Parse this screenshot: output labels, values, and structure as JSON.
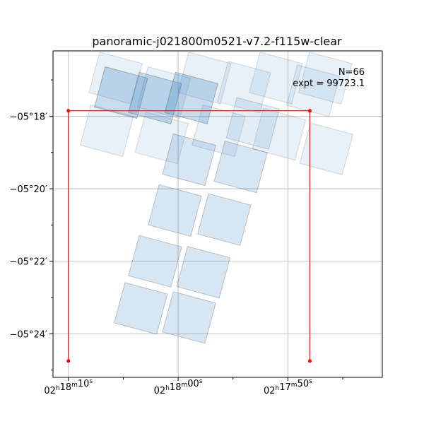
{
  "chart_data": {
    "type": "footprint",
    "title": "panoramic-j021800m0521-v7.2-f115w-clear",
    "annotation": {
      "n_label": "N=66",
      "expt_label": "expt = 99723.1"
    },
    "grid": true,
    "x_ticks": [
      {
        "ra_sec": 10,
        "label_h": "02",
        "label_m": "18",
        "label_s": "10"
      },
      {
        "ra_sec": 0,
        "label_h": "02",
        "label_m": "18",
        "label_s": "00"
      },
      {
        "ra_sec": -10,
        "label_h": "02",
        "label_m": "17",
        "label_s": "50"
      }
    ],
    "y_ticks": [
      {
        "dec_arcmin": -18,
        "label": "−05°18′"
      },
      {
        "dec_arcmin": -20,
        "label": "−05°20′"
      },
      {
        "dec_arcmin": -22,
        "label": "−05°22′"
      },
      {
        "dec_arcmin": -24,
        "label": "−05°24′"
      }
    ],
    "xlim_ra_sec": [
      11.4,
      -18.6
    ],
    "ylim_dec_arcmin": [
      -25.2,
      -16.2
    ],
    "outline": {
      "color": "#ff0000",
      "points": [
        {
          "ra_sec": 10.0,
          "dec_arcmin": -24.75
        },
        {
          "ra_sec": 10.0,
          "dec_arcmin": -17.85
        },
        {
          "ra_sec": -12.0,
          "dec_arcmin": -17.85
        },
        {
          "ra_sec": -12.0,
          "dec_arcmin": -24.75
        }
      ]
    },
    "footprints": {
      "fill_color": "#4a8cc7",
      "edge_color": "#555555",
      "tiles": [
        {
          "ra": -2.4,
          "dec": -16.95,
          "w": 4.0,
          "h": 1.15,
          "alpha": 0.12
        },
        {
          "ra": -8.9,
          "dec": -16.95,
          "w": 4.0,
          "h": 1.15,
          "alpha": 0.12
        },
        {
          "ra": 5.7,
          "dec": -16.95,
          "w": 4.0,
          "h": 1.15,
          "alpha": 0.12
        },
        {
          "ra": -13.4,
          "dec": -16.95,
          "w": 4.0,
          "h": 1.15,
          "alpha": 0.12
        },
        {
          "ra": 1.3,
          "dec": -17.35,
          "w": 4.0,
          "h": 1.15,
          "alpha": 0.12
        },
        {
          "ra": -6.0,
          "dec": -17.2,
          "w": 4.0,
          "h": 1.15,
          "alpha": 0.12
        },
        {
          "ra": -12.3,
          "dec": -17.3,
          "w": 4.0,
          "h": 1.15,
          "alpha": 0.12
        },
        {
          "ra": 6.5,
          "dec": -18.4,
          "w": 4.0,
          "h": 1.15,
          "alpha": 0.12
        },
        {
          "ra": 1.5,
          "dec": -18.6,
          "w": 4.0,
          "h": 1.15,
          "alpha": 0.12
        },
        {
          "ra": -3.7,
          "dec": -18.4,
          "w": 4.0,
          "h": 1.15,
          "alpha": 0.12
        },
        {
          "ra": -9.2,
          "dec": -18.5,
          "w": 4.0,
          "h": 1.15,
          "alpha": 0.12
        },
        {
          "ra": -13.5,
          "dec": -18.9,
          "w": 4.0,
          "h": 1.15,
          "alpha": 0.12
        },
        {
          "ra": 5.2,
          "dec": -17.35,
          "w": 4.0,
          "h": 1.15,
          "alpha": 0.3
        },
        {
          "ra": 2.1,
          "dec": -17.5,
          "w": 4.0,
          "h": 1.15,
          "alpha": 0.3
        },
        {
          "ra": -1.2,
          "dec": -17.5,
          "w": 4.0,
          "h": 1.15,
          "alpha": 0.3
        },
        {
          "ra": -6.8,
          "dec": -18.2,
          "w": 4.0,
          "h": 1.15,
          "alpha": 0.16
        },
        {
          "ra": -1.0,
          "dec": -19.2,
          "w": 4.0,
          "h": 1.15,
          "alpha": 0.22
        },
        {
          "ra": -5.7,
          "dec": -19.4,
          "w": 4.0,
          "h": 1.15,
          "alpha": 0.22
        },
        {
          "ra": 0.3,
          "dec": -20.6,
          "w": 4.0,
          "h": 1.15,
          "alpha": 0.22
        },
        {
          "ra": -4.2,
          "dec": -20.85,
          "w": 4.0,
          "h": 1.15,
          "alpha": 0.22
        },
        {
          "ra": 2.1,
          "dec": -22.0,
          "w": 4.0,
          "h": 1.15,
          "alpha": 0.22
        },
        {
          "ra": -2.3,
          "dec": -22.3,
          "w": 4.0,
          "h": 1.15,
          "alpha": 0.22
        },
        {
          "ra": 3.4,
          "dec": -23.3,
          "w": 4.0,
          "h": 1.15,
          "alpha": 0.22
        },
        {
          "ra": -1.0,
          "dec": -23.55,
          "w": 4.0,
          "h": 1.15,
          "alpha": 0.22
        }
      ]
    }
  }
}
